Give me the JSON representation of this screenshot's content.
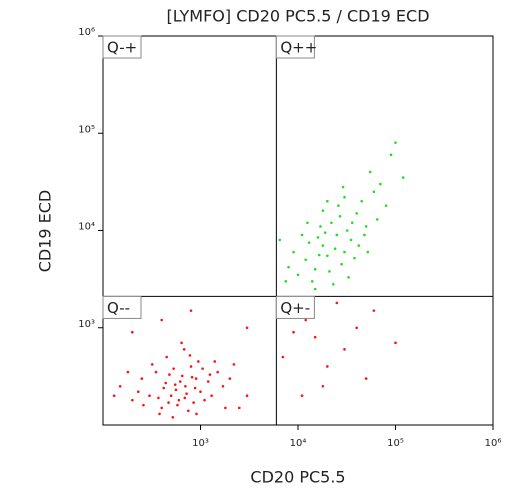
{
  "chart_data": {
    "type": "scatter",
    "title": "[LYMFO] CD20 PC5.5 / CD19 ECD",
    "x_label": "CD20 PC5.5",
    "y_label": "CD19 ECD",
    "log_x": true,
    "log_y": true,
    "xlim": [
      100,
      1000000
    ],
    "ylim": [
      100,
      1000000
    ],
    "xticks": [
      {
        "value": 1000,
        "label": "10³"
      },
      {
        "value": 10000,
        "label": "10⁴"
      },
      {
        "value": 100000,
        "label": "10⁵"
      },
      {
        "value": 1000000,
        "label": "10⁶"
      }
    ],
    "yticks": [
      {
        "value": 1000,
        "label": "10³"
      },
      {
        "value": 10000,
        "label": "10⁴"
      },
      {
        "value": 100000,
        "label": "10⁵"
      },
      {
        "value": 1000000,
        "label": "10⁶"
      }
    ],
    "gates": {
      "x": 6000,
      "y": 2100
    },
    "quadrant_labels": [
      "Q-+",
      "Q++",
      "Q--",
      "Q+-"
    ],
    "series": [
      {
        "color": "#22dd22",
        "x": [
          12000,
          18000,
          25000,
          30000,
          15000,
          22000,
          40000,
          35000,
          20000,
          28000,
          16000,
          10000,
          9000,
          45000,
          60000,
          50000,
          14000,
          24000,
          32000,
          19000,
          27000,
          13000,
          21000,
          38000,
          70000,
          8000,
          11000,
          17000,
          26000,
          55000,
          90000,
          120000,
          30000,
          42000,
          23000,
          15000,
          65000,
          18000,
          7500,
          33000,
          48000,
          29000,
          100000,
          6500,
          80000,
          20000,
          36000,
          12500,
          52000,
          16500
        ],
        "y": [
          5000,
          7000,
          9000,
          6000,
          4000,
          12000,
          15000,
          8000,
          5500,
          4500,
          8500,
          3500,
          6000,
          20000,
          25000,
          11000,
          3000,
          6500,
          10000,
          9500,
          14000,
          7500,
          3800,
          5200,
          30000,
          4200,
          9000,
          11000,
          18000,
          40000,
          60000,
          35000,
          22000,
          7000,
          2800,
          2500,
          13000,
          16000,
          3000,
          3300,
          9000,
          28000,
          80000,
          8000,
          18000,
          20000,
          12000,
          12000,
          6000,
          5600
        ]
      },
      {
        "color": "#ff1111",
        "x": [
          500,
          700,
          900,
          600,
          400,
          800,
          1000,
          650,
          550,
          750,
          300,
          350,
          450,
          1200,
          1500,
          1100,
          850,
          950,
          680,
          520,
          420,
          380,
          250,
          200,
          150,
          1300,
          2000,
          2500,
          720,
          620,
          880,
          480,
          580,
          1050,
          780,
          320,
          260,
          1700,
          3000,
          440,
          690,
          820,
          560,
          1400,
          910,
          370,
          470,
          1250,
          230,
          180,
          130,
          640,
          1800,
          530,
          2200,
          8000,
          15000,
          20000,
          12000,
          30000,
          50000,
          9000,
          25000,
          40000,
          7000,
          100000,
          18000,
          60000,
          11000,
          400,
          800,
          200,
          3000
        ],
        "y": [
          200,
          250,
          300,
          180,
          150,
          400,
          220,
          320,
          260,
          140,
          200,
          350,
          500,
          280,
          350,
          180,
          170,
          450,
          600,
          120,
          240,
          130,
          300,
          180,
          250,
          200,
          300,
          150,
          210,
          280,
          240,
          330,
          160,
          380,
          520,
          420,
          160,
          250,
          200,
          270,
          190,
          310,
          230,
          450,
          130,
          190,
          170,
          330,
          220,
          350,
          200,
          700,
          150,
          380,
          420,
          1500,
          800,
          400,
          1200,
          600,
          300,
          900,
          1800,
          1000,
          500,
          700,
          250,
          1500,
          200,
          1200,
          1500,
          900,
          1000
        ]
      }
    ]
  }
}
